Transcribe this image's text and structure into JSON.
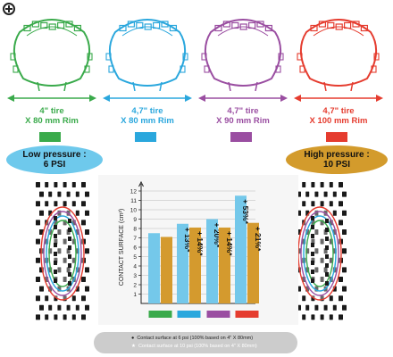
{
  "colors": {
    "green": "#3aaa4b",
    "blue": "#2aa7dd",
    "purple": "#9a4ea1",
    "red": "#e53c2f",
    "bar_6psi": "#74c8ea",
    "bar_10psi": "#d49a2e",
    "pill_low": "#6ec9ec",
    "pill_high": "#d39b2c"
  },
  "tires": [
    {
      "line1": "4\" tire",
      "line2": "X 80 mm Rim",
      "color": "#3aaa4b"
    },
    {
      "line1": "4,7\" tire",
      "line2": "X 80 mm Rim",
      "color": "#2aa7dd"
    },
    {
      "line1": "4,7\" tire",
      "line2": "X 90 mm Rim",
      "color": "#9a4ea1"
    },
    {
      "line1": "4,7\" tire",
      "line2": "X 100 mm Rim",
      "color": "#e53c2f"
    }
  ],
  "pressure": {
    "low": {
      "line1": "Low pressure :",
      "line2": "6 PSI"
    },
    "high": {
      "line1": "High pressure :",
      "line2": "10 PSI"
    }
  },
  "chart_data": {
    "type": "bar",
    "ylabel": "CONTACT SURFACE (cm²)",
    "ylim": [
      0,
      12
    ],
    "yticks": [
      1,
      2,
      3,
      4,
      5,
      6,
      7,
      8,
      9,
      10,
      11,
      12
    ],
    "grid": true,
    "categories": [
      "4\" X 80 mm",
      "4,7\" X 80 mm",
      "4,7\" X 90 mm",
      "4,7\" X 100 mm"
    ],
    "category_colors": [
      "#3aaa4b",
      "#2aa7dd",
      "#9a4ea1",
      "#e53c2f"
    ],
    "series": [
      {
        "values": [
          7.5,
          8.5,
          9.0,
          11.5
        ],
        "labels": [
          "",
          "+ 13%*",
          "+ 20%*",
          "+ 53%*"
        ]
      },
      {
        "values": [
          7.1,
          8.1,
          8.1,
          8.6
        ],
        "labels": [
          "",
          "+ 14%*",
          "+ 14%*",
          "+ 21%*"
        ]
      }
    ]
  },
  "footnote": {
    "line1": "Contact surface at 6 psi (100% based on 4\" X 80mm)",
    "line2": "Contact surface at 10 psi (100% based on 4\" X 80mm)"
  }
}
